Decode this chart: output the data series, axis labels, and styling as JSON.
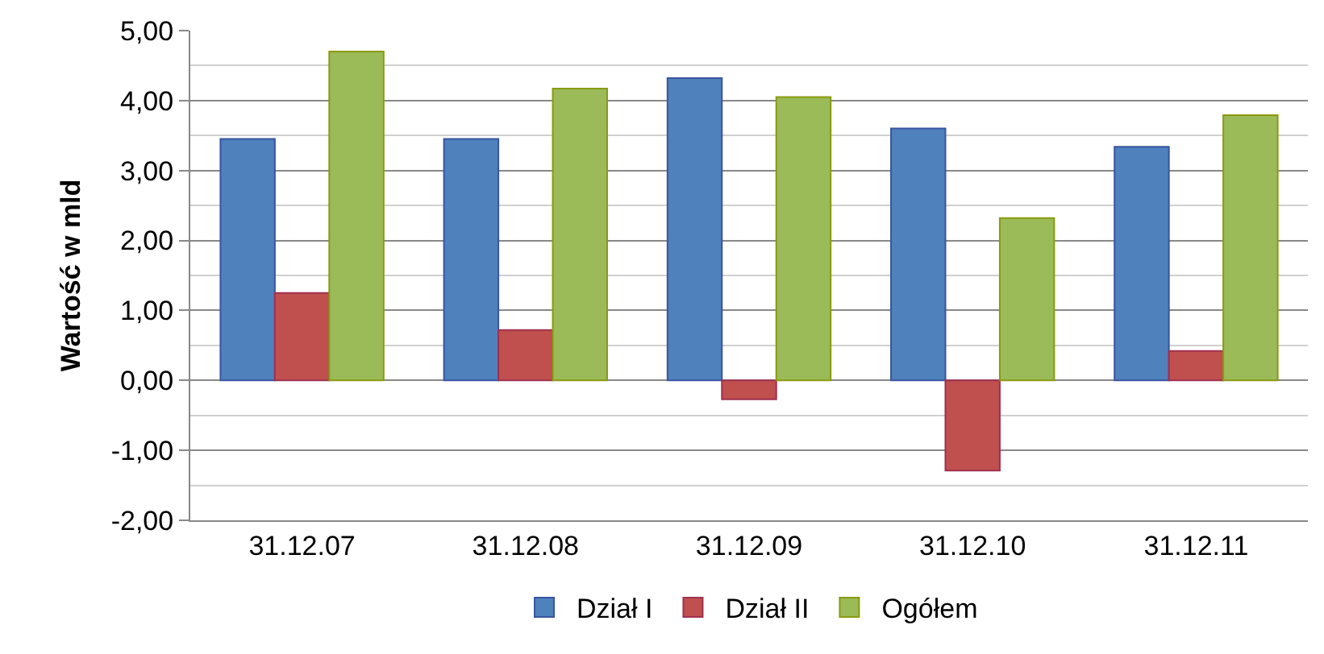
{
  "chart_data": {
    "type": "bar",
    "ylabel": "Wartość w mld",
    "categories": [
      "31.12.07",
      "31.12.08",
      "31.12.09",
      "31.12.10",
      "31.12.11"
    ],
    "series": [
      {
        "name": "Dział I",
        "color": "#4f81bd",
        "values": [
          3.45,
          3.45,
          4.32,
          3.6,
          3.34
        ]
      },
      {
        "name": "Dział II",
        "color": "#c0504d",
        "values": [
          1.25,
          0.72,
          -0.27,
          -1.29,
          0.42
        ]
      },
      {
        "name": "Ogółem",
        "color": "#9bbb59",
        "values": [
          4.7,
          4.17,
          4.05,
          2.32,
          3.79
        ]
      }
    ],
    "ylim": [
      -2,
      5
    ],
    "yticks": [
      {
        "value": -2,
        "label": "-2,00"
      },
      {
        "value": -1,
        "label": "-1,00"
      },
      {
        "value": 0,
        "label": "0,00"
      },
      {
        "value": 1,
        "label": "1,00"
      },
      {
        "value": 2,
        "label": "2,00"
      },
      {
        "value": 3,
        "label": "3,00"
      },
      {
        "value": 4,
        "label": "4,00"
      },
      {
        "value": 5,
        "label": "5,00"
      }
    ],
    "grid": true,
    "legend": "bottom"
  }
}
